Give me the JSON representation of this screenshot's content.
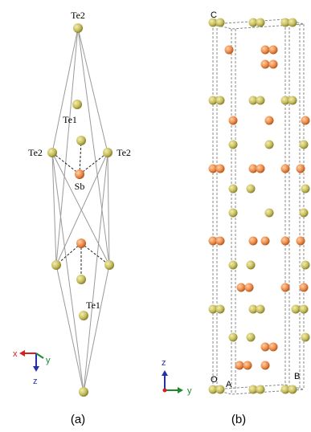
{
  "panel_a": {
    "atom_labels": [
      "Te2",
      "Te1",
      "Te2",
      "Te2",
      "Sb",
      "Te1"
    ],
    "axes": [
      "x",
      "y",
      "z"
    ],
    "caption": "(a)"
  },
  "panel_b": {
    "cell_labels": [
      "C",
      "O",
      "A",
      "B"
    ],
    "axes": [
      "z",
      "y"
    ],
    "caption": "(b)"
  }
}
